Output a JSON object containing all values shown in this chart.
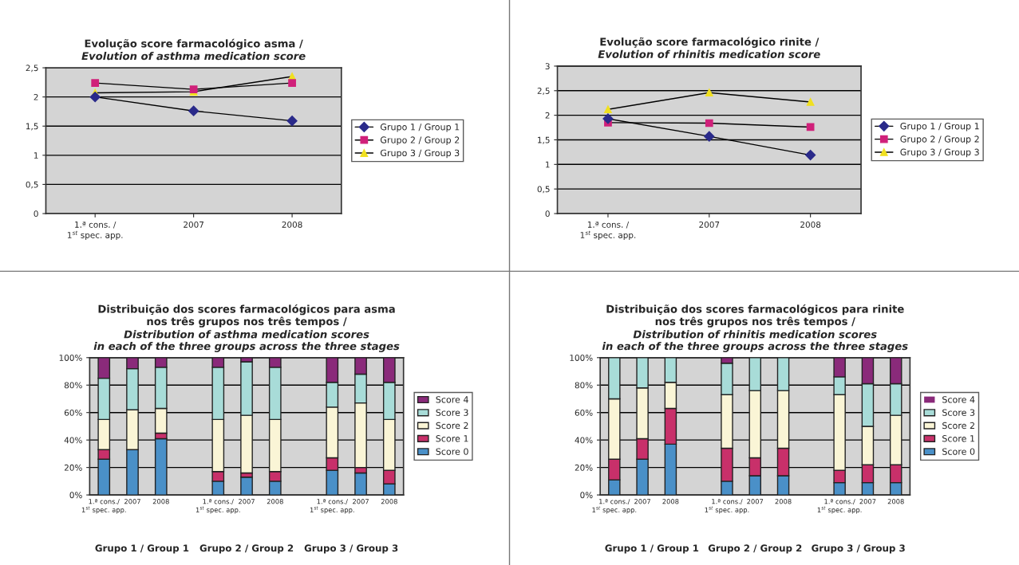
{
  "chart_data": [
    {
      "type": "line",
      "title": "Evolução score farmacológico asma /",
      "subtitle": "Evolution of asthma medication score",
      "categories": [
        "1.ª cons. /\n1$^{st}$ spec. app.",
        "2007",
        "2008"
      ],
      "series": [
        {
          "name": "Grupo 1 / Group 1",
          "color": "#2a2a8a",
          "marker": "diamond",
          "values": [
            2.0,
            1.76,
            1.59
          ]
        },
        {
          "name": "Grupo 2 / Group 2",
          "color": "#d0207a",
          "marker": "square",
          "values": [
            2.24,
            2.13,
            2.24
          ]
        },
        {
          "name": "Grupo 3 / Group 3",
          "color": "#f0e020",
          "marker": "triangle",
          "values": [
            2.07,
            2.09,
            2.35
          ]
        }
      ],
      "ylim": [
        0,
        2.5
      ],
      "yticks": [
        0,
        {
          "value": 0.5,
          "label": "0,5"
        },
        1,
        {
          "value": 1.5,
          "label": "1,5"
        },
        2,
        {
          "value": 2.5,
          "label": "2,5"
        }
      ],
      "grid": "y",
      "legend": "right"
    },
    {
      "type": "line",
      "title": "Evolução score farmacológico rinite /",
      "subtitle": "Evolution of rhinitis medication score",
      "categories": [
        "1.ª cons. /\n1$^{st}$ spec. app.",
        "2007",
        "2008"
      ],
      "series": [
        {
          "name": "Grupo 1 / Group 1",
          "color": "#2a2a8a",
          "marker": "diamond",
          "values": [
            1.93,
            1.57,
            1.19
          ]
        },
        {
          "name": "Grupo 2 / Group 2",
          "color": "#d0207a",
          "marker": "square",
          "values": [
            1.85,
            1.84,
            1.76
          ]
        },
        {
          "name": "Grupo 3 / Group 3",
          "color": "#f0e020",
          "marker": "triangle",
          "values": [
            2.12,
            2.46,
            2.27
          ]
        }
      ],
      "ylim": [
        0,
        3
      ],
      "yticks": [
        0,
        {
          "value": 0.5,
          "label": "0,5"
        },
        1,
        {
          "value": 1.5,
          "label": "1,5"
        },
        2,
        {
          "value": 2.5,
          "label": "2,5"
        },
        3
      ],
      "grid": "y",
      "legend": "right"
    },
    {
      "type": "bar",
      "stacked": true,
      "title": "Distribuição dos scores farmacológicos para asma\nnos três grupos nos três tempos /",
      "subtitle": "Distribution of asthma medication scores\nin each of the three groups across the three stages",
      "categories": [
        "1.ª cons./\n1$^{st}$ spec. app.",
        "2007",
        "2008",
        null,
        "1.ª cons./\n1$^{st}$ spec. app.",
        "2007",
        "2008",
        null,
        "1.ª cons./\n1$^{st}$ spec. app.",
        "2007",
        "2008"
      ],
      "series": [
        {
          "name": "Score 0",
          "color": "#4a90c8",
          "values": [
            26,
            33,
            41,
            null,
            10,
            13,
            10,
            null,
            18,
            16,
            8
          ]
        },
        {
          "name": "Score 1",
          "color": "#c8306a",
          "values": [
            7,
            0,
            4,
            null,
            7,
            3,
            7,
            null,
            9,
            4,
            10
          ]
        },
        {
          "name": "Score 2",
          "color": "#faf5d6",
          "values": [
            22,
            29,
            18,
            null,
            38,
            42,
            38,
            null,
            37,
            47,
            37
          ]
        },
        {
          "name": "Score 3",
          "color": "#a8dcd8",
          "values": [
            30,
            30,
            30,
            null,
            38,
            39,
            38,
            null,
            18,
            21,
            27
          ]
        },
        {
          "name": "Score 4",
          "color": "#8a2a7a",
          "values": [
            15,
            8,
            7,
            null,
            7,
            3,
            7,
            null,
            18,
            12,
            18
          ]
        }
      ],
      "ylim": [
        0,
        100
      ],
      "yticks": [
        {
          "value": 0,
          "label": "0%"
        },
        {
          "value": 20,
          "label": "20%"
        },
        {
          "value": 40,
          "label": "40%"
        },
        {
          "value": 60,
          "label": "60%"
        },
        {
          "value": 80,
          "label": "80%"
        },
        {
          "value": 100,
          "label": "100%"
        }
      ],
      "annotations": [
        "Grupo 1 / Group 1",
        "Grupo 2 / Group 2",
        "Grupo 3 / Group 3"
      ],
      "grid": "y",
      "legend": "right"
    },
    {
      "type": "bar",
      "stacked": true,
      "title": "Distribuição dos scores farmacológicos para rinite\nnos três grupos nos três tempos /",
      "subtitle": "Distribution of rhinitis medication scores\nin each of the three groups across the three stages",
      "categories": [
        "1.ª cons./\n1$^{st}$ spec. app.",
        "2007",
        "2008",
        null,
        "1.ª cons./\n1$^{st}$ spec. app.",
        "2007",
        "2008",
        null,
        "1.ª cons./\n1$^{st}$ spec. app.",
        "2007",
        "2008"
      ],
      "series": [
        {
          "name": "Score 0",
          "color": "#4a90c8",
          "values": [
            11,
            26,
            37,
            null,
            10,
            14,
            14,
            null,
            9,
            9,
            9
          ]
        },
        {
          "name": "Score 1",
          "color": "#c8306a",
          "values": [
            15,
            15,
            26,
            null,
            24,
            13,
            20,
            null,
            9,
            13,
            13
          ]
        },
        {
          "name": "Score 2",
          "color": "#faf5d6",
          "values": [
            44,
            37,
            19,
            null,
            39,
            49,
            42,
            null,
            55,
            28,
            36
          ]
        },
        {
          "name": "Score 3",
          "color": "#a8dcd8",
          "values": [
            30,
            22,
            18,
            null,
            23,
            24,
            24,
            null,
            13,
            31,
            23
          ]
        },
        {
          "name": "Score 4",
          "color": "#8a2a7a",
          "values": [
            0,
            0,
            0,
            null,
            4,
            0,
            0,
            null,
            14,
            19,
            19
          ]
        }
      ],
      "ylim": [
        0,
        100
      ],
      "yticks": [
        {
          "value": 0,
          "label": "0%"
        },
        {
          "value": 20,
          "label": "20%"
        },
        {
          "value": 40,
          "label": "40%"
        },
        {
          "value": 60,
          "label": "60%"
        },
        {
          "value": 80,
          "label": "80%"
        },
        {
          "value": 100,
          "label": "100%"
        }
      ],
      "annotations": [
        "Grupo 1 / Group 1",
        "Grupo 2 / Group 2",
        "Grupo 3 / Group 3"
      ],
      "grid": "y",
      "legend": "right"
    }
  ]
}
